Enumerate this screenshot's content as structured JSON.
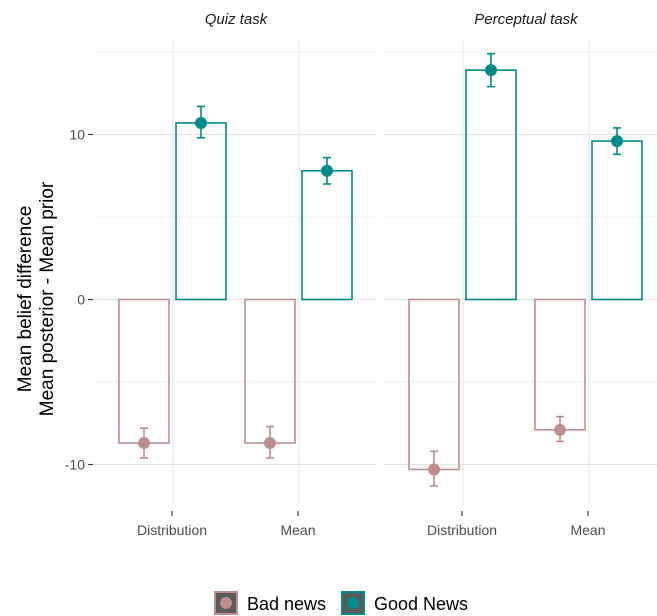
{
  "chart_data": {
    "type": "bar",
    "facets": [
      "Quiz task",
      "Perceptual task"
    ],
    "categories": [
      "Distribution",
      "Mean"
    ],
    "ylabel": [
      "Mean belief difference",
      "Mean posterior - Mean prior"
    ],
    "ylim": [
      -12.5,
      17.5
    ],
    "yticks": [
      -10,
      0,
      10
    ],
    "grid": true,
    "legend_position": "bottom",
    "series": [
      {
        "name": "Bad news",
        "color": "#BC8F8F",
        "values": [
          [
            {
              "value": -8.7,
              "lo": -9.6,
              "hi": -7.8
            },
            {
              "value": -8.7,
              "lo": -9.6,
              "hi": -7.7
            }
          ],
          [
            {
              "value": -10.3,
              "lo": -11.3,
              "hi": -9.2
            },
            {
              "value": -7.9,
              "lo": -8.6,
              "hi": -7.1
            }
          ]
        ]
      },
      {
        "name": "Good News",
        "color": "#008B8B",
        "values": [
          [
            {
              "value": 10.7,
              "lo": 9.8,
              "hi": 11.7
            },
            {
              "value": 7.8,
              "lo": 7.0,
              "hi": 8.6
            }
          ],
          [
            {
              "value": 13.9,
              "lo": 12.9,
              "hi": 14.9
            },
            {
              "value": 9.6,
              "lo": 8.8,
              "hi": 10.4
            }
          ]
        ]
      }
    ]
  }
}
